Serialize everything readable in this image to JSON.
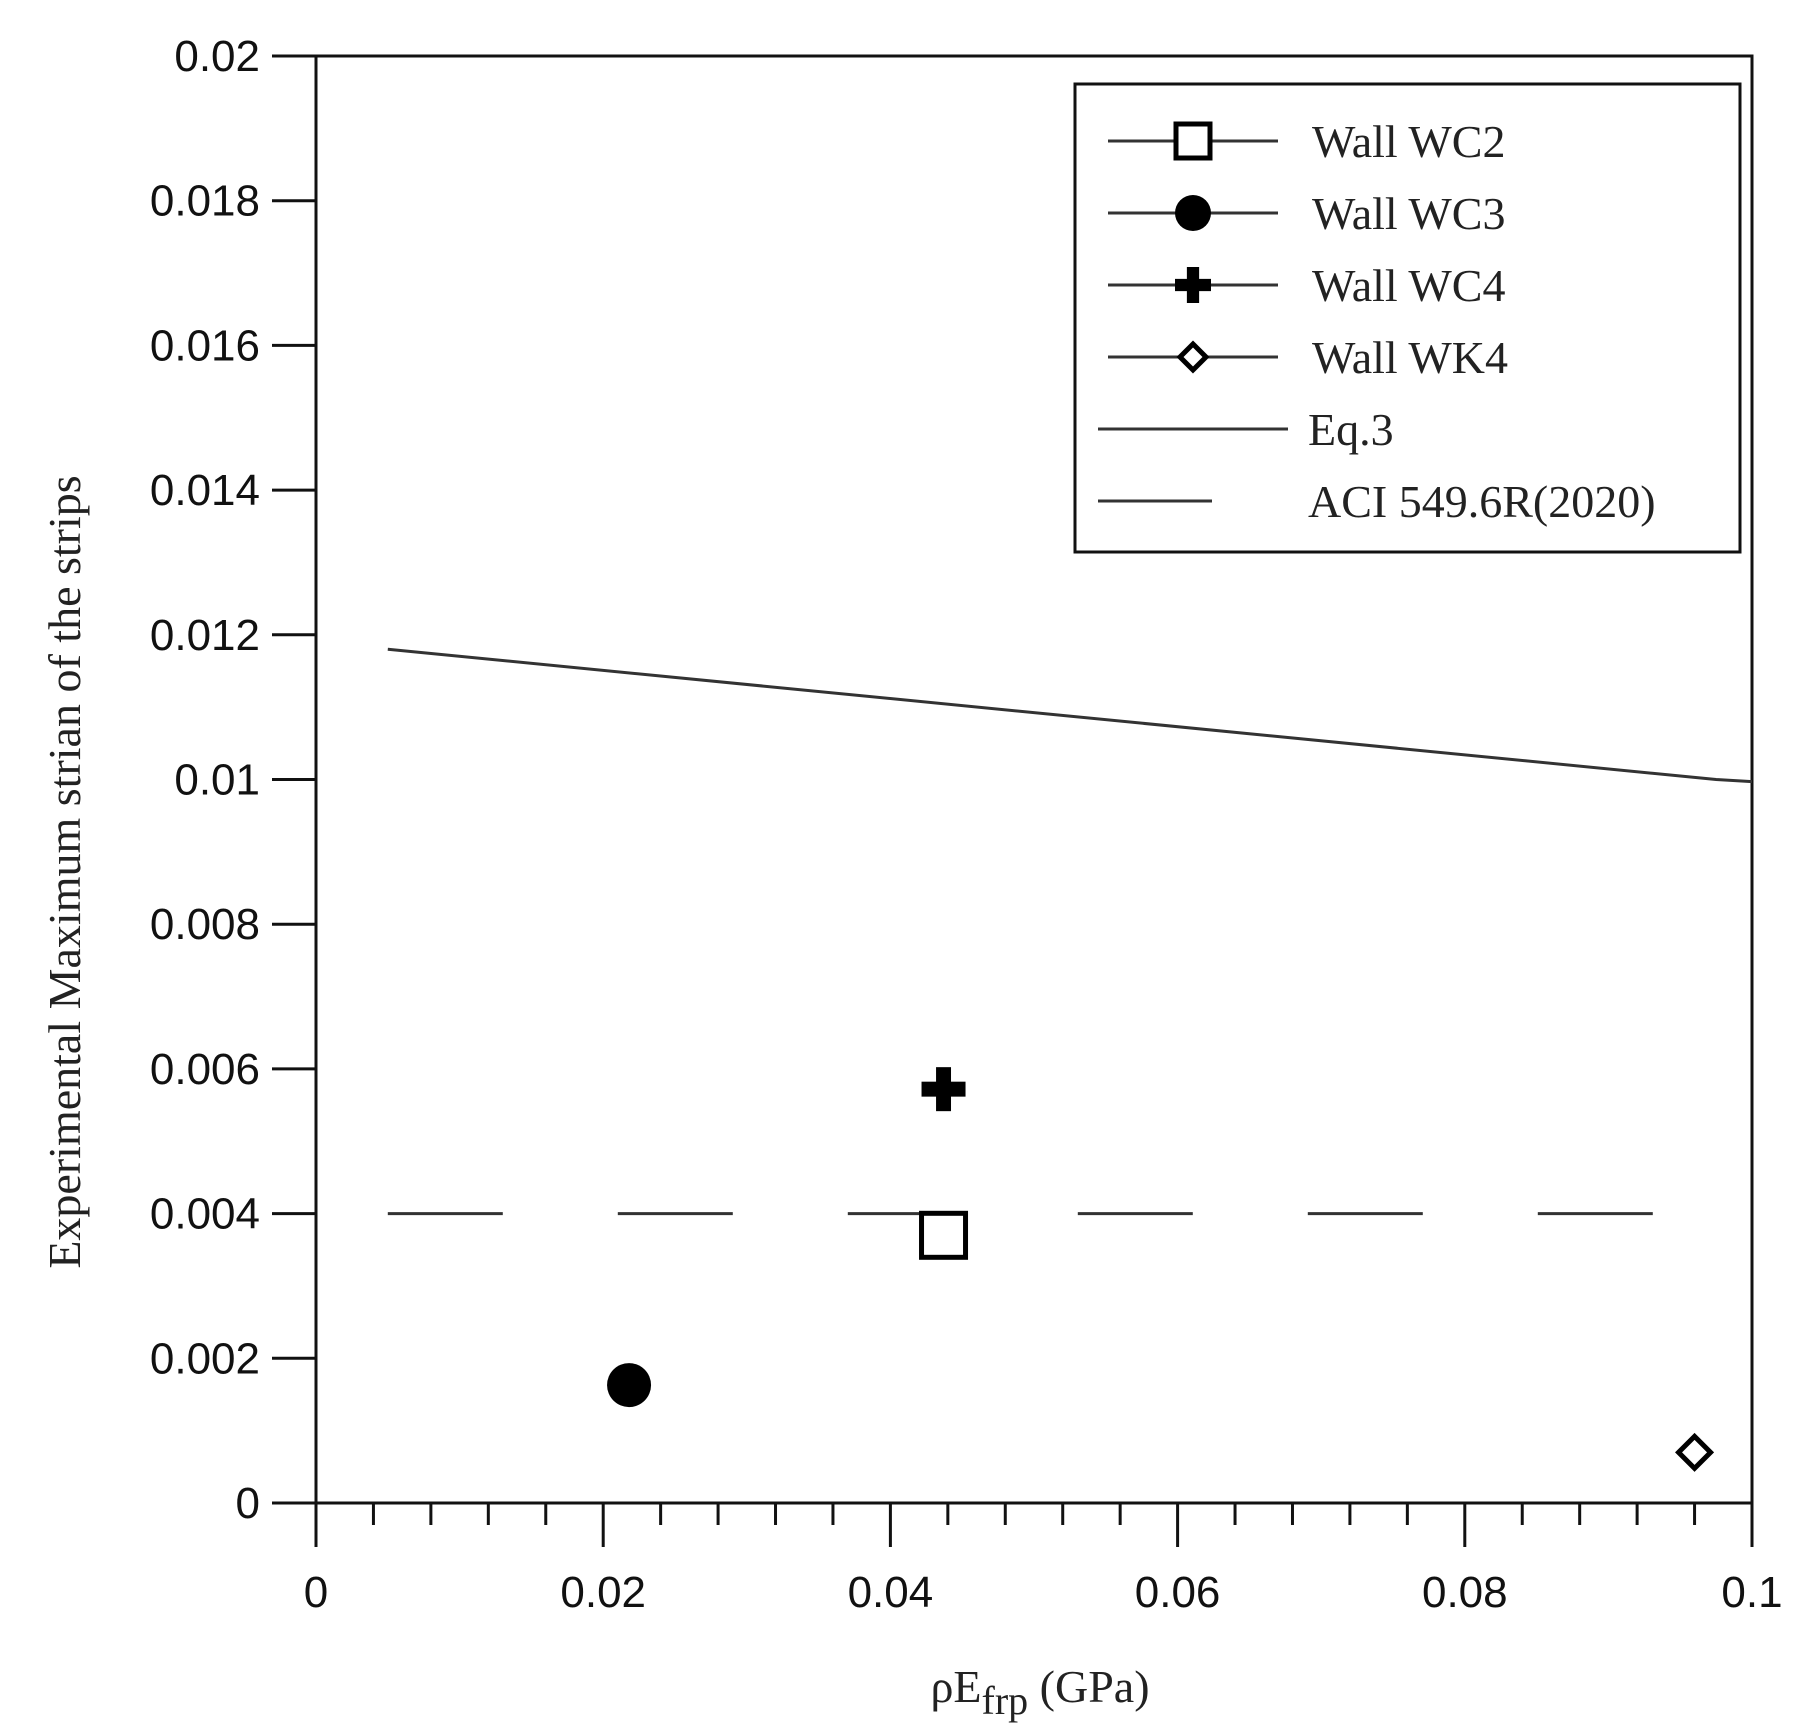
{
  "chart_data": {
    "type": "scatter",
    "xlabel": "ρE",
    "xlabel_sub": "frp",
    "xlabel_unit": " (GPa)",
    "ylabel": "Experimental Maximum strian of the strips",
    "xlim": [
      0,
      0.1
    ],
    "ylim": [
      0,
      0.02
    ],
    "x_ticks": [
      0,
      0.02,
      0.04,
      0.06,
      0.08,
      0.1
    ],
    "x_tick_labels": [
      "0",
      "0.02",
      "0.04",
      "0.06",
      "0.08",
      "0.1"
    ],
    "y_ticks": [
      0,
      0.002,
      0.004,
      0.006,
      0.008,
      0.01,
      0.012,
      0.014,
      0.016,
      0.018,
      0.02
    ],
    "y_tick_labels": [
      "0",
      "0.002",
      "0.004",
      "0.006",
      "0.008",
      "0.01",
      "0.012",
      "0.014",
      "0.016",
      "0.018",
      "0.02"
    ],
    "grid": false,
    "legend_position": "top-right",
    "series": [
      {
        "name": "Wall WC2",
        "marker": "open-square",
        "x": [
          0.0437
        ],
        "y": [
          0.0037
        ]
      },
      {
        "name": "Wall WC3",
        "marker": "filled-circle",
        "x": [
          0.0218
        ],
        "y": [
          0.00163
        ]
      },
      {
        "name": "Wall WC4",
        "marker": "plus",
        "x": [
          0.0437
        ],
        "y": [
          0.00572
        ]
      },
      {
        "name": "Wall WK4",
        "marker": "open-diamond",
        "x": [
          0.096
        ],
        "y": [
          0.0007
        ]
      }
    ],
    "lines": [
      {
        "name": "Eq.3",
        "style": "solid",
        "x": [
          0.005,
          0.0975,
          0.1
        ],
        "y": [
          0.0118,
          0.01,
          0.00997
        ]
      },
      {
        "name": "ACI 549.6R(2020)",
        "style": "dashed",
        "x": [
          0.005,
          0.1
        ],
        "y": [
          0.004,
          0.004
        ]
      }
    ],
    "colors": {
      "marker": "#000000",
      "line": "#333333",
      "axis": "#111111"
    }
  }
}
